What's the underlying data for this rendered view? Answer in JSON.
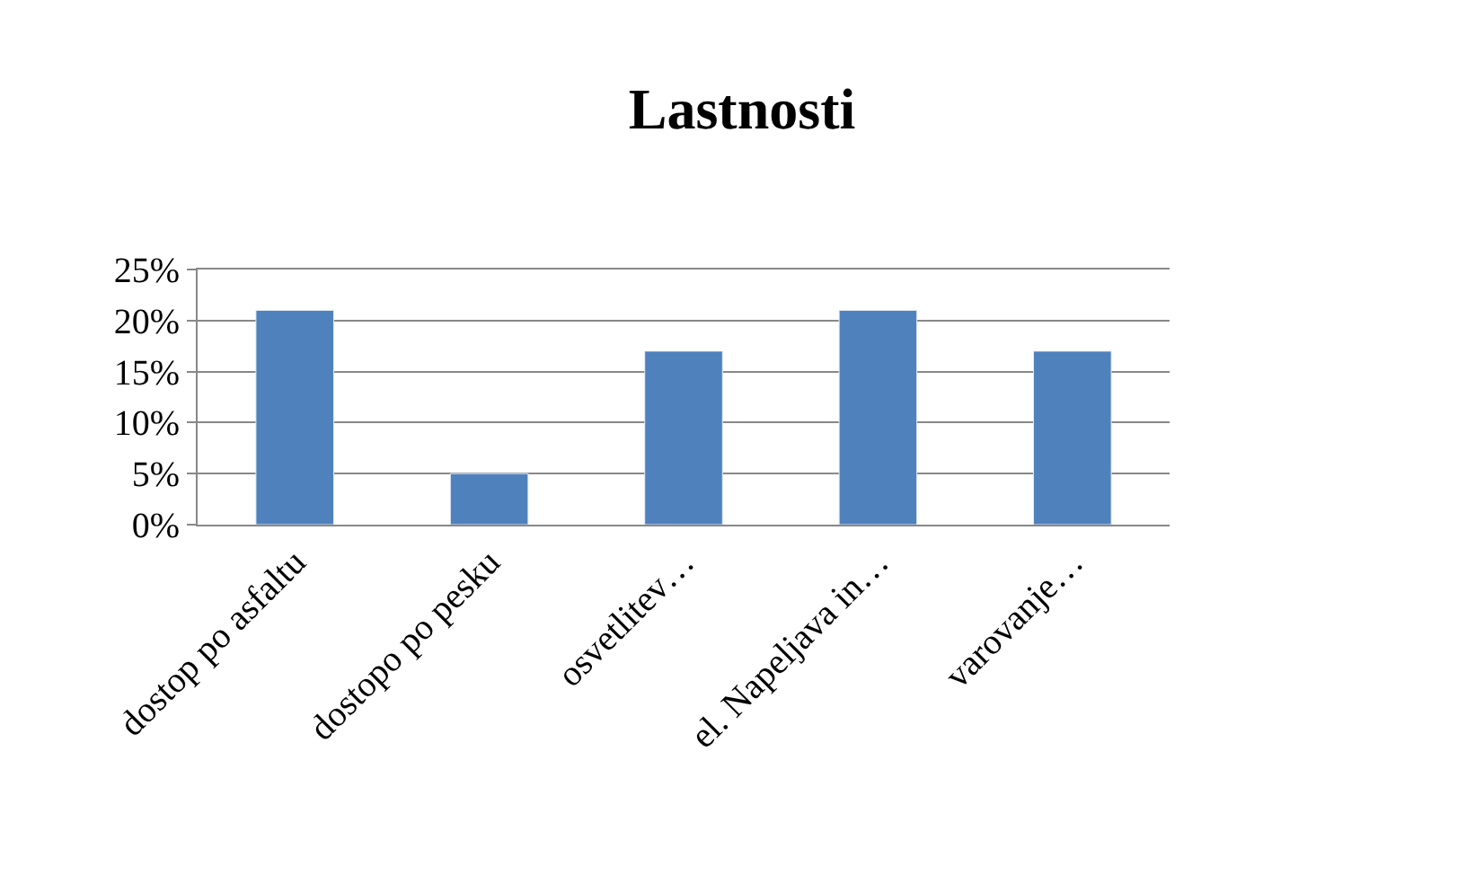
{
  "chart_data": {
    "type": "bar",
    "title": "Lastnosti",
    "categories": [
      "dostop po asfaltu",
      "dostopo po pesku",
      "osvetlitev…",
      "el. Napeljava in…",
      "varovanje…"
    ],
    "values": [
      21,
      5,
      17,
      21,
      17
    ],
    "color": "#4f81bd",
    "ylim": [
      0,
      25
    ],
    "yticks": [
      {
        "value": 0,
        "label": "0%"
      },
      {
        "value": 5,
        "label": "5%"
      },
      {
        "value": 10,
        "label": "10%"
      },
      {
        "value": 15,
        "label": "15%"
      },
      {
        "value": 20,
        "label": "20%"
      },
      {
        "value": 25,
        "label": "25%"
      }
    ],
    "grid": "y"
  }
}
